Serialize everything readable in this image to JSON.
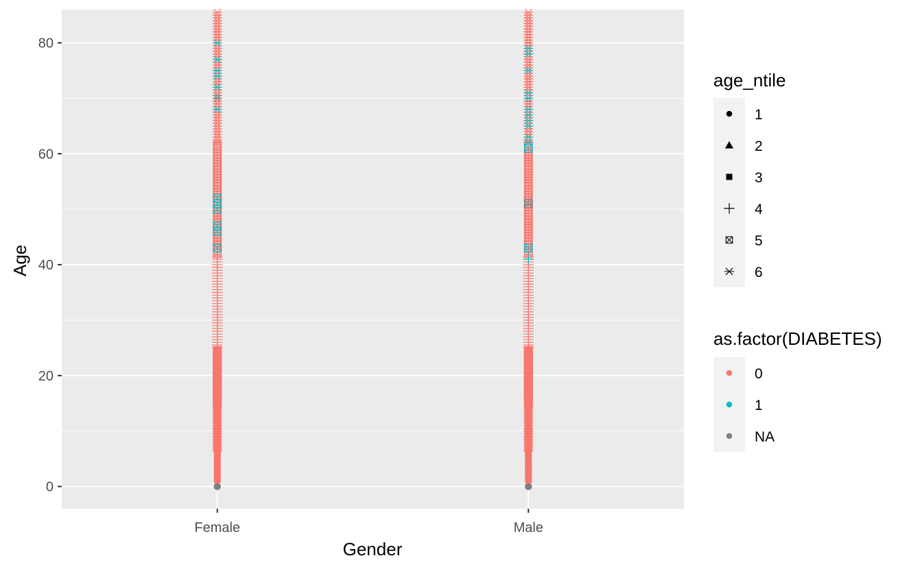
{
  "chart_data": {
    "type": "scatter",
    "xlabel": "Gender",
    "ylabel": "Age",
    "categories": [
      "Female",
      "Male"
    ],
    "ylim": [
      -4,
      86
    ],
    "yticks": [
      0,
      20,
      40,
      60,
      80
    ],
    "grid": true,
    "legend_shape": {
      "title": "age_ntile",
      "entries": [
        {
          "label": "1",
          "shape": "circle",
          "range": [
            1,
            6
          ]
        },
        {
          "label": "2",
          "shape": "triangle",
          "range": [
            6,
            14
          ]
        },
        {
          "label": "3",
          "shape": "square",
          "range": [
            14,
            24
          ]
        },
        {
          "label": "4",
          "shape": "plus",
          "range": [
            25,
            41
          ]
        },
        {
          "label": "5",
          "shape": "boxcross",
          "range": [
            42,
            61
          ]
        },
        {
          "label": "6",
          "shape": "asterisk",
          "range": [
            62,
            85
          ]
        }
      ]
    },
    "legend_color": {
      "title": "as.factor(DIABETES)",
      "entries": [
        {
          "label": "0",
          "color": "#F8766D"
        },
        {
          "label": "1",
          "color": "#00BFC4"
        },
        {
          "label": "NA",
          "color": "#7F7F7F"
        }
      ]
    },
    "na_age": 0,
    "diabetes_ages": {
      "Female": [
        43,
        46,
        47,
        50,
        51,
        52,
        68,
        72,
        74,
        75,
        77,
        80
      ],
      "Male": [
        41,
        43,
        61,
        62,
        63,
        65,
        66,
        67,
        68,
        70,
        71,
        75,
        78,
        79
      ]
    },
    "na_ages": {
      "Female": [
        0,
        70
      ],
      "Male": [
        0,
        51
      ]
    }
  }
}
